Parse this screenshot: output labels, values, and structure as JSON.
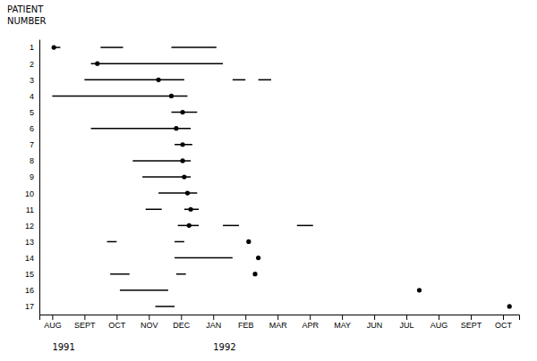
{
  "chart_data": {
    "type": "timeline",
    "y_label": "PATIENT\nNUMBER",
    "annotations": [
      "1991",
      "1992"
    ],
    "color": "black",
    "grid": false,
    "categories": [
      "1",
      "2",
      "3",
      "4",
      "5",
      "6",
      "7",
      "8",
      "9",
      "10",
      "11",
      "12",
      "13",
      "14",
      "15",
      "16",
      "17"
    ],
    "segments": [
      [
        [
          0.0,
          0.25
        ],
        [
          1.5,
          2.2
        ],
        [
          3.7,
          5.1
        ]
      ],
      [
        [
          1.2,
          5.3
        ]
      ],
      [
        [
          1.0,
          4.1
        ],
        [
          5.6,
          6.0
        ],
        [
          6.4,
          6.8
        ]
      ],
      [
        [
          0.0,
          4.2
        ]
      ],
      [
        [
          3.7,
          4.5
        ]
      ],
      [
        [
          1.2,
          4.3
        ]
      ],
      [
        [
          3.8,
          4.35
        ]
      ],
      [
        [
          2.5,
          4.3
        ]
      ],
      [
        [
          2.8,
          4.3
        ]
      ],
      [
        [
          3.3,
          4.5
        ]
      ],
      [
        [
          2.9,
          3.4
        ],
        [
          4.1,
          4.55
        ]
      ],
      [
        [
          3.9,
          4.55
        ],
        [
          5.3,
          5.8
        ],
        [
          7.6,
          8.1
        ]
      ],
      [
        [
          1.7,
          2.0
        ],
        [
          3.8,
          4.1
        ]
      ],
      [
        [
          3.8,
          5.6
        ]
      ],
      [
        [
          1.8,
          2.4
        ],
        [
          3.85,
          4.15
        ]
      ],
      [
        [
          2.1,
          3.6
        ]
      ],
      [
        [
          3.2,
          3.8
        ]
      ]
    ],
    "dots": [
      0.05,
      1.4,
      3.3,
      3.7,
      4.05,
      3.85,
      4.05,
      4.05,
      4.1,
      4.2,
      4.3,
      4.25,
      6.1,
      6.4,
      6.3,
      11.4,
      14.2
    ],
    "xlim": [
      -0.4,
      14.5
    ],
    "xticks": [
      {
        "value": 0,
        "label": "AUG"
      },
      {
        "value": 1,
        "label": "SEPT"
      },
      {
        "value": 2,
        "label": "OCT"
      },
      {
        "value": 3,
        "label": "NOV"
      },
      {
        "value": 4,
        "label": "DEC"
      },
      {
        "value": 5,
        "label": "JAN"
      },
      {
        "value": 6,
        "label": "FEB"
      },
      {
        "value": 7,
        "label": "MAR"
      },
      {
        "value": 8,
        "label": "APR"
      },
      {
        "value": 9,
        "label": "MAY"
      },
      {
        "value": 10,
        "label": "JUN"
      },
      {
        "value": 11,
        "label": "JUL"
      },
      {
        "value": 12,
        "label": "AUG"
      },
      {
        "value": 13,
        "label": "SEPT"
      },
      {
        "value": 14,
        "label": "OCT"
      }
    ]
  }
}
